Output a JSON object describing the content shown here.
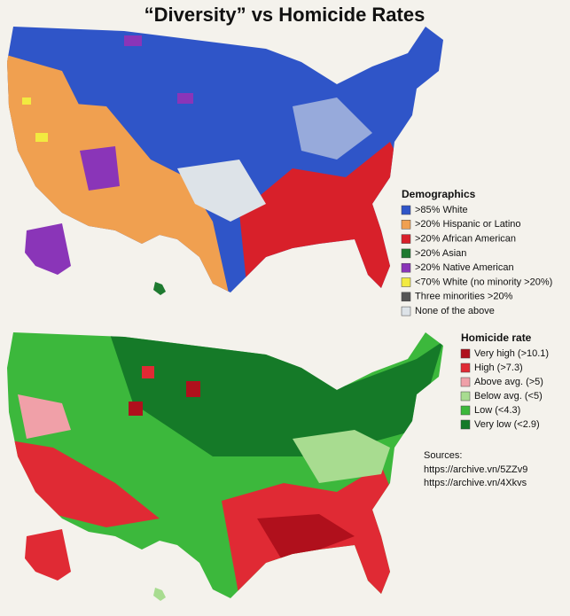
{
  "title": "“Diversity” vs Homicide Rates",
  "demographics_legend": {
    "title": "Demographics",
    "items": [
      {
        "label": ">85% White",
        "color": "#2f55c8"
      },
      {
        "label": ">20% Hispanic or Latino",
        "color": "#f0a050"
      },
      {
        "label": ">20% African American",
        "color": "#d8202a"
      },
      {
        "label": ">20% Asian",
        "color": "#1e7a30"
      },
      {
        "label": ">20% Native American",
        "color": "#8a35b8"
      },
      {
        "label": "<70% White (no minority >20%)",
        "color": "#f2ea40"
      },
      {
        "label": "Three minorities >20%",
        "color": "#555555"
      },
      {
        "label": "None of the above",
        "color": "#dde3e8"
      }
    ]
  },
  "homicide_legend": {
    "title": "Homicide rate",
    "items": [
      {
        "label": "Very high (>10.1)",
        "color": "#b0101c"
      },
      {
        "label": "High (>7.3)",
        "color": "#e02a34"
      },
      {
        "label": "Above avg. (>5)",
        "color": "#f0a0a8"
      },
      {
        "label": "Below avg. (<5)",
        "color": "#a8dc90"
      },
      {
        "label": "Low (<4.3)",
        "color": "#3cb83c"
      },
      {
        "label": "Very low (<2.9)",
        "color": "#157a28"
      }
    ]
  },
  "sources": {
    "label": "Sources:",
    "links": [
      "https://archive.vn/5ZZv9",
      "https://archive.vn/4Xkvs"
    ]
  }
}
